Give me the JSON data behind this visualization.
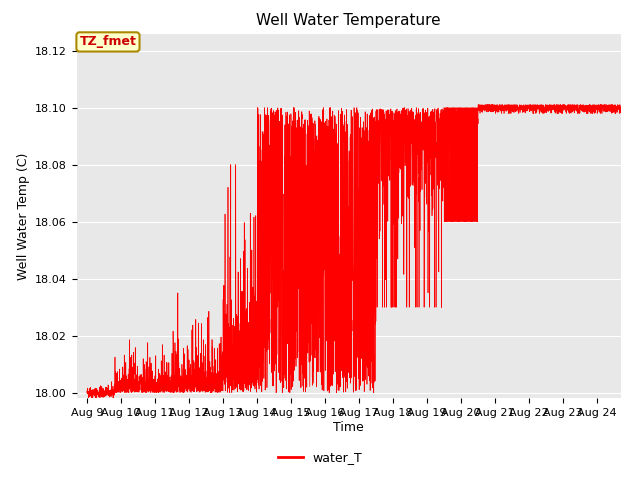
{
  "title": "Well Water Temperature",
  "xlabel": "Time",
  "ylabel": "Well Water Temp (C)",
  "yticks": [
    18.0,
    18.02,
    18.04,
    18.06,
    18.08,
    18.1,
    18.12
  ],
  "xtick_labels": [
    "Aug 9",
    "Aug 10",
    "Aug 11",
    "Aug 12",
    "Aug 13",
    "Aug 14",
    "Aug 15",
    "Aug 16",
    "Aug 17",
    "Aug 18",
    "Aug 19",
    "Aug 20",
    "Aug 21",
    "Aug 22",
    "Aug 23",
    "Aug 24"
  ],
  "line_color": "#FF0000",
  "line_label": "water_T",
  "annotation_text": "TZ_fmet",
  "annotation_bg": "#FFFFCC",
  "annotation_border": "#AA8800",
  "annotation_text_color": "#CC0000",
  "plot_bg_color": "#E8E8E8",
  "fig_bg_color": "#FFFFFF",
  "title_fontsize": 11,
  "axis_label_fontsize": 9,
  "tick_fontsize": 8,
  "legend_fontsize": 9
}
